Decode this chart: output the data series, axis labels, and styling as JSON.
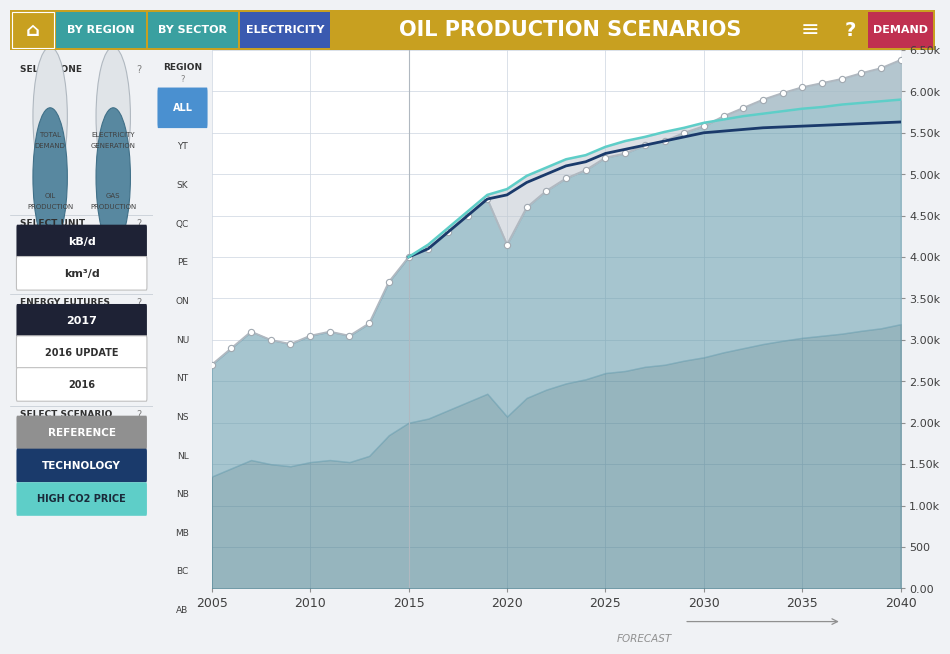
{
  "title": "OIL PRODUCTION SCENARIOS",
  "xlim": [
    2005,
    2040
  ],
  "ylim": [
    0,
    6500
  ],
  "ytick_vals": [
    0,
    500,
    1000,
    1500,
    2000,
    2500,
    3000,
    3500,
    4000,
    4500,
    5000,
    5500,
    6000,
    6500
  ],
  "ytick_labels": [
    "0.00",
    "500",
    "1.00k",
    "1.50k",
    "2.00k",
    "2.50k",
    "3.00k",
    "3.50k",
    "4.00k",
    "4.50k",
    "5.00k",
    "5.50k",
    "6.00k",
    "6.50k"
  ],
  "xticks": [
    2005,
    2010,
    2015,
    2020,
    2025,
    2030,
    2035,
    2040
  ],
  "forecast_start": 2015,
  "grid_color": "#d0d8e2",
  "fill_blue_dark": "#6a9fb8",
  "fill_blue_light": "#b8d0df",
  "ref_line_color": "#b0b8c0",
  "ref_marker_color": "#c8d0d8",
  "tech_line_color": "#1a3a6b",
  "co2_line_color": "#5ecec8",
  "gray_fill_color": "#c8cfd6",
  "years_reference": [
    2005,
    2006,
    2007,
    2008,
    2009,
    2010,
    2011,
    2012,
    2013,
    2014,
    2015,
    2016,
    2017,
    2018,
    2019,
    2020,
    2021,
    2022,
    2023,
    2024,
    2025,
    2026,
    2027,
    2028,
    2029,
    2030,
    2031,
    2032,
    2033,
    2034,
    2035,
    2036,
    2037,
    2038,
    2039,
    2040
  ],
  "values_reference": [
    2700,
    2900,
    3100,
    3000,
    2950,
    3050,
    3100,
    3050,
    3200,
    3700,
    4000,
    4100,
    4300,
    4500,
    4700,
    4150,
    4600,
    4800,
    4950,
    5050,
    5200,
    5250,
    5350,
    5400,
    5500,
    5580,
    5700,
    5800,
    5900,
    5980,
    6050,
    6100,
    6150,
    6220,
    6280,
    6380
  ],
  "years_technology": [
    2015,
    2016,
    2017,
    2018,
    2019,
    2020,
    2021,
    2022,
    2023,
    2024,
    2025,
    2026,
    2027,
    2028,
    2029,
    2030,
    2031,
    2032,
    2033,
    2034,
    2035,
    2036,
    2037,
    2038,
    2039,
    2040
  ],
  "values_technology": [
    4000,
    4100,
    4300,
    4500,
    4700,
    4750,
    4900,
    5000,
    5100,
    5150,
    5250,
    5300,
    5350,
    5400,
    5450,
    5500,
    5520,
    5540,
    5560,
    5570,
    5580,
    5590,
    5600,
    5610,
    5620,
    5630
  ],
  "years_high_co2": [
    2015,
    2016,
    2017,
    2018,
    2019,
    2020,
    2021,
    2022,
    2023,
    2024,
    2025,
    2026,
    2027,
    2028,
    2029,
    2030,
    2031,
    2032,
    2033,
    2034,
    2035,
    2036,
    2037,
    2038,
    2039,
    2040
  ],
  "values_high_co2": [
    4000,
    4150,
    4350,
    4550,
    4750,
    4820,
    4980,
    5080,
    5180,
    5230,
    5330,
    5400,
    5450,
    5510,
    5560,
    5620,
    5660,
    5700,
    5730,
    5760,
    5790,
    5810,
    5840,
    5860,
    5880,
    5900
  ],
  "nav_home_color": "#c8a020",
  "nav_region_color": "#3aa0a0",
  "nav_sector_color": "#3aa0a0",
  "nav_elec_color": "#3a5ab0",
  "nav_demand_color": "#c03050",
  "header_gold": "#c8a020",
  "left_bg": "#f0f2f5",
  "region_panel_bg": "#e8ecf2",
  "all_button_color": "#4a90d0",
  "dark_button_color": "#1e2235",
  "ref_button_color": "#909090",
  "tech_button_color": "#1a3a6b",
  "co2_button_color": "#5ecec8",
  "regions": [
    "ALL",
    "YT",
    "SK",
    "QC",
    "PE",
    "ON",
    "NU",
    "NT",
    "NS",
    "NL",
    "NB",
    "MB",
    "BC",
    "AB"
  ]
}
